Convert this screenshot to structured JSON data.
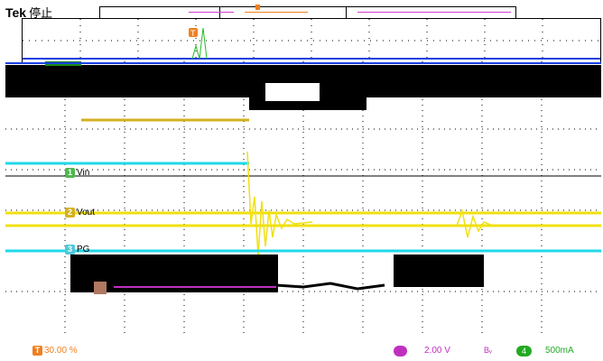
{
  "header": {
    "brand": "Tek",
    "state": "停止"
  },
  "trigger": {
    "marker": "T"
  },
  "channels": [
    {
      "num": "1",
      "label": "Vin",
      "color": "#4cb84c"
    },
    {
      "num": "2",
      "label": "Vout",
      "color": "#d4b020"
    },
    {
      "num": "3",
      "label": "PG",
      "color": "#50c8d8"
    }
  ],
  "footer": {
    "trigger_level": "30.00 %",
    "ch_scale_left": "2.00 V",
    "bandwidth": "Bᵥ",
    "ch4_badge": "4",
    "ch4_scale": "500mA"
  },
  "colors": {
    "ch1": "#22bb22",
    "ch2": "#f0e010",
    "ch3": "#20d8e8",
    "ch4_pink": "#c030c0",
    "trigger": "#f08020",
    "blue_bar": "#1840e0",
    "grid": "#000000"
  }
}
